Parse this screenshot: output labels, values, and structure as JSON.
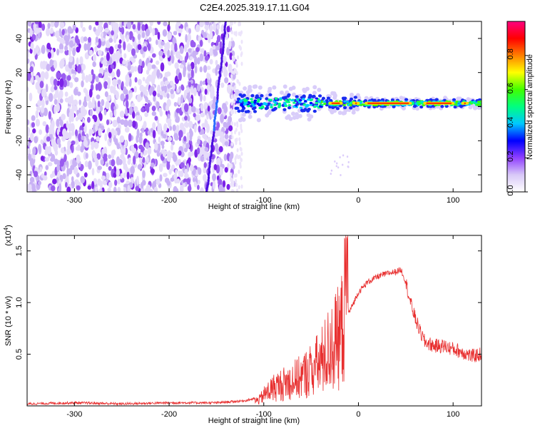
{
  "title": "C2E4.2025.319.17.11.G04",
  "chart_data": [
    {
      "type": "heatmap",
      "xlabel": "Height of straight line (km)",
      "ylabel": "Frequency (Hz)",
      "xlim": [
        -350,
        130
      ],
      "ylim": [
        -50,
        50
      ],
      "x_ticks": [
        -300,
        -200,
        -100,
        0,
        100
      ],
      "x_tick_labels": [
        "-300",
        "-200",
        "-100",
        "0",
        "100"
      ],
      "y_ticks": [
        -40,
        -20,
        0,
        20,
        40
      ],
      "y_tick_labels": [
        "-40",
        "-20",
        "0",
        "20",
        "40"
      ],
      "colorbar": {
        "label": "Normalized spectral amplitude",
        "range": [
          0,
          1
        ],
        "ticks": [
          0.0,
          0.2,
          0.4,
          0.6,
          0.8
        ],
        "tick_labels": [
          "0.0",
          "0.2",
          "0.4",
          "0.6",
          "0.8"
        ],
        "colors": [
          "#ffffff",
          "#d8c8f8",
          "#9040ff",
          "#0000ff",
          "#00c8ff",
          "#00ff80",
          "#40ff00",
          "#ffff00",
          "#ff8000",
          "#ff0000",
          "#ff0080"
        ]
      },
      "regions": [
        {
          "name": "noise band",
          "x_range": [
            -350,
            -130
          ],
          "freq_range": [
            -50,
            50
          ],
          "amplitude": 0.12
        },
        {
          "name": "diagonal streak",
          "x_range": [
            -160,
            -140
          ],
          "freq_range": [
            -50,
            50
          ],
          "amplitude": 0.25
        },
        {
          "name": "signal line",
          "x_range": [
            -130,
            130
          ],
          "frequency_center": 2,
          "amplitude": 0.9
        }
      ]
    },
    {
      "type": "line",
      "xlabel": "Height of straight line (km)",
      "ylabel": "SNR (10 * v/v)",
      "y_multiplier": "(x10",
      "y_multiplier_exp": "4",
      "y_multiplier_close": ")",
      "xlim": [
        -350,
        130
      ],
      "ylim": [
        0,
        1.65
      ],
      "x_ticks": [
        -300,
        -200,
        -100,
        0,
        100
      ],
      "x_tick_labels": [
        "-300",
        "-200",
        "-100",
        "0",
        "100"
      ],
      "y_ticks": [
        0.5,
        1.0,
        1.5
      ],
      "y_tick_labels": [
        "0.5",
        "1.0",
        "1.5"
      ],
      "series": [
        {
          "name": "SNR",
          "color": "#e83030",
          "x": [
            -350,
            -300,
            -250,
            -200,
            -150,
            -120,
            -105,
            -100,
            -90,
            -80,
            -70,
            -60,
            -50,
            -40,
            -30,
            -20,
            -15,
            -12,
            -10,
            0,
            10,
            20,
            30,
            40,
            45,
            50,
            55,
            60,
            65,
            70,
            75,
            80,
            90,
            100,
            110,
            120,
            130
          ],
          "y": [
            0.02,
            0.03,
            0.02,
            0.03,
            0.03,
            0.05,
            0.08,
            0.15,
            0.25,
            0.3,
            0.35,
            0.4,
            0.5,
            0.6,
            0.8,
            0.95,
            1.2,
            1.0,
            0.9,
            1.1,
            1.2,
            1.25,
            1.28,
            1.3,
            1.32,
            1.2,
            1.0,
            0.85,
            0.72,
            0.62,
            0.6,
            0.58,
            0.58,
            0.55,
            0.52,
            0.48,
            0.5
          ]
        }
      ]
    }
  ]
}
